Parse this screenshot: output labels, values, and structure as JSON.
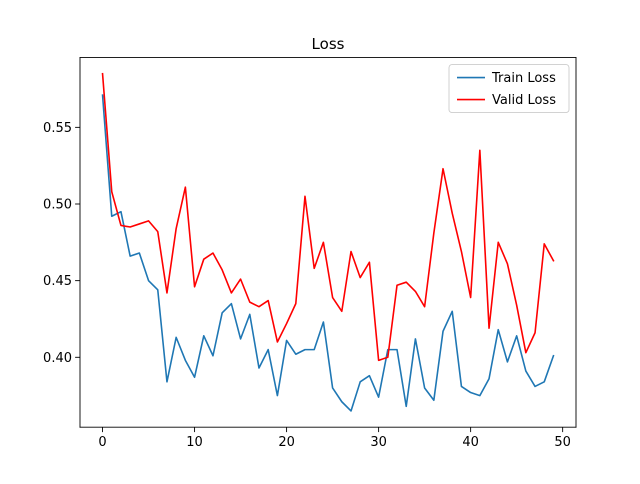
{
  "chart_data": {
    "type": "line",
    "title": "Loss",
    "xlabel": "",
    "ylabel": "",
    "xlim": [
      -2.45,
      51.45
    ],
    "ylim": [
      0.3544,
      0.5955
    ],
    "xticks": [
      0,
      10,
      20,
      30,
      40,
      50
    ],
    "yticks": [
      0.4,
      0.45,
      0.5,
      0.55
    ],
    "ytick_labels": [
      "0.40",
      "0.45",
      "0.50",
      "0.55"
    ],
    "grid": false,
    "legend_position": "top-right",
    "x": [
      0,
      1,
      2,
      3,
      4,
      5,
      6,
      7,
      8,
      9,
      10,
      11,
      12,
      13,
      14,
      15,
      16,
      17,
      18,
      19,
      20,
      21,
      22,
      23,
      24,
      25,
      26,
      27,
      28,
      29,
      30,
      31,
      32,
      33,
      34,
      35,
      36,
      37,
      38,
      39,
      40,
      41,
      42,
      43,
      44,
      45,
      46,
      47,
      48,
      49
    ],
    "series": [
      {
        "name": "Train Loss",
        "color": "#1f77b4",
        "values": [
          0.571,
          0.492,
          0.495,
          0.466,
          0.468,
          0.45,
          0.444,
          0.384,
          0.413,
          0.398,
          0.387,
          0.414,
          0.401,
          0.429,
          0.435,
          0.412,
          0.428,
          0.393,
          0.405,
          0.375,
          0.411,
          0.402,
          0.405,
          0.405,
          0.423,
          0.38,
          0.371,
          0.365,
          0.384,
          0.388,
          0.374,
          0.405,
          0.405,
          0.368,
          0.412,
          0.38,
          0.372,
          0.417,
          0.43,
          0.381,
          0.377,
          0.375,
          0.386,
          0.418,
          0.397,
          0.414,
          0.391,
          0.381,
          0.384,
          0.401
        ]
      },
      {
        "name": "Valid Loss",
        "color": "#ff0000",
        "values": [
          0.585,
          0.508,
          0.486,
          0.485,
          0.487,
          0.489,
          0.482,
          0.442,
          0.484,
          0.511,
          0.446,
          0.464,
          0.468,
          0.457,
          0.442,
          0.451,
          0.436,
          0.433,
          0.437,
          0.41,
          0.422,
          0.435,
          0.505,
          0.458,
          0.475,
          0.439,
          0.43,
          0.469,
          0.452,
          0.462,
          0.398,
          0.4,
          0.447,
          0.449,
          0.443,
          0.433,
          0.481,
          0.523,
          0.494,
          0.469,
          0.439,
          0.535,
          0.419,
          0.475,
          0.461,
          0.434,
          0.403,
          0.416,
          0.474,
          0.463
        ]
      }
    ]
  }
}
